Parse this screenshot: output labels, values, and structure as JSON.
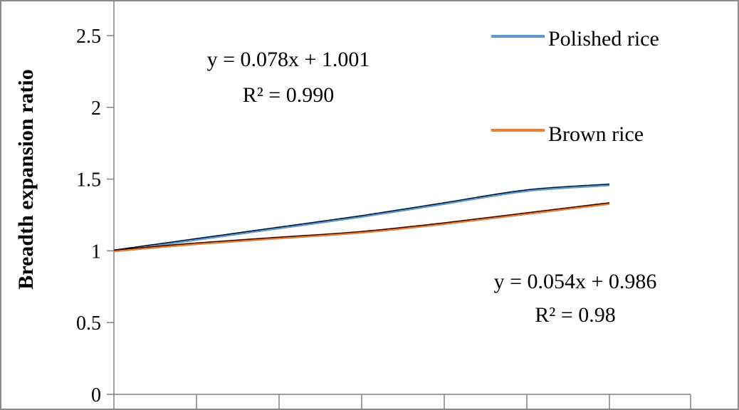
{
  "chart_data": {
    "type": "line",
    "title": "",
    "xlabel": "",
    "ylabel": "Breadth expansion ratio",
    "ylim": [
      0,
      2.5
    ],
    "yticks": [
      0,
      0.5,
      1,
      1.5,
      2,
      2.5
    ],
    "ytick_labels": [
      "0",
      "0.5",
      "1",
      "1.5",
      "2",
      "2.5"
    ],
    "x": [
      0,
      1,
      2,
      3,
      4,
      5,
      6
    ],
    "grid": false,
    "legend": "top-right",
    "series": [
      {
        "name": "Polished rice",
        "color": "#5b9bd5",
        "values": [
          1.0,
          1.08,
          1.16,
          1.24,
          1.33,
          1.42,
          1.46
        ],
        "trend": {
          "label": "y = 0.078x + 1.001",
          "r2": "R² = 0.990",
          "slope": 0.078,
          "intercept": 1.001
        }
      },
      {
        "name": "Brown rice",
        "color": "#ed7d31",
        "values": [
          1.0,
          1.05,
          1.09,
          1.13,
          1.19,
          1.26,
          1.33
        ],
        "trend": {
          "label": "y = 0.054x + 0.986",
          "r2": "R² = 0.98",
          "slope": 0.054,
          "intercept": 0.986
        }
      }
    ]
  }
}
